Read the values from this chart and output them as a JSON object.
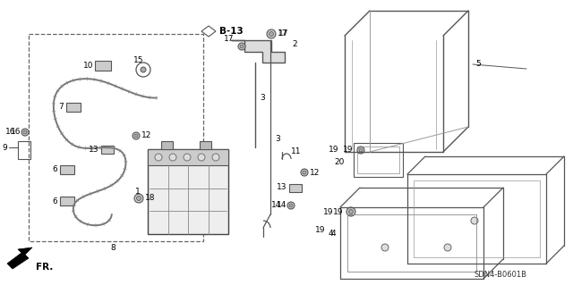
{
  "bg_color": "#ffffff",
  "line_color": "#555555",
  "text_color": "#000000",
  "bottom_right_code": "SDN4-B0601B",
  "fr_label": "FR.",
  "label_B13": "B-13",
  "figsize": [
    6.4,
    3.19
  ],
  "dpi": 100
}
